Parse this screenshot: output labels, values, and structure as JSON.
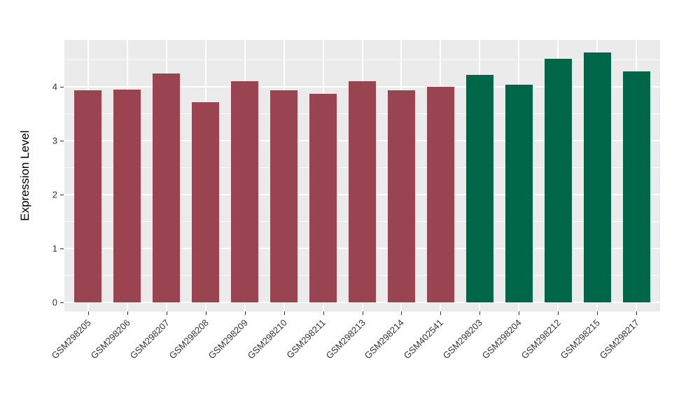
{
  "figure": {
    "background": "#FFFFFF"
  },
  "chart_data": {
    "type": "bar",
    "title": "",
    "xlabel": "",
    "ylabel": "Expression Level",
    "categories": [
      "GSM298205",
      "GSM298206",
      "GSM298207",
      "GSM298208",
      "GSM298209",
      "GSM298210",
      "GSM298211",
      "GSM298213",
      "GSM298214",
      "GSM402541",
      "GSM298203",
      "GSM298204",
      "GSM298212",
      "GSM298215",
      "GSM298217"
    ],
    "values": [
      3.94,
      3.95,
      4.25,
      3.72,
      4.11,
      3.93,
      3.87,
      4.11,
      3.93,
      4.0,
      4.22,
      4.04,
      4.52,
      4.64,
      4.28
    ],
    "bar_groups": [
      0,
      0,
      0,
      0,
      0,
      0,
      0,
      0,
      0,
      0,
      1,
      1,
      1,
      1,
      1
    ],
    "group_colors": [
      "#994450",
      "#006648"
    ],
    "yticks": [
      0,
      1,
      2,
      3,
      4
    ],
    "yticks_minor": [
      0.5,
      1.5,
      2.5,
      3.5,
      4.5
    ],
    "ylim": [
      -0.17,
      4.87
    ],
    "baseline": 0,
    "bar_width_fraction": 0.7,
    "category_edge_expand": 0.6,
    "panel_bg": "#EBEBEB",
    "grid_color": "#FFFFFF",
    "axis_text_color": "#333333",
    "grid": "on",
    "legend": "none",
    "x_label_angle_deg": 45
  }
}
